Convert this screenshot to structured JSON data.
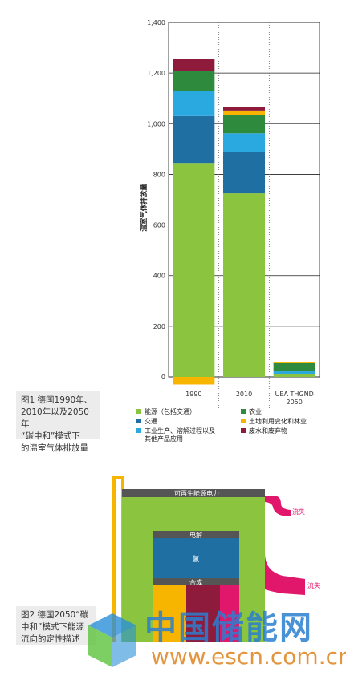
{
  "chart_data": {
    "type": "bar",
    "stacked": true,
    "categories": [
      "1990",
      "2010",
      "UEA THGND 2050"
    ],
    "category_lines": [
      [
        "1990"
      ],
      [
        "2010"
      ],
      [
        "UEA THGND",
        "2050"
      ]
    ],
    "ylabel": "温室气体排放量",
    "ylim": [
      -40,
      1400
    ],
    "yticks": [
      "0",
      "200",
      "400",
      "600",
      "800",
      "1,000",
      "1,200",
      "1,400"
    ],
    "ytick_values": [
      0,
      200,
      400,
      600,
      800,
      1000,
      1200,
      1400
    ],
    "grid": true,
    "series": [
      {
        "name": "能源（包括交通）",
        "color": "#8bc53f",
        "values": [
          845,
          725,
          12
        ]
      },
      {
        "name": "交通",
        "color": "#1f6fa3",
        "values": [
          185,
          162,
          0
        ]
      },
      {
        "name": "工业生产、溶解过程以及其他产品应用",
        "color": "#2aa8e0",
        "values": [
          98,
          75,
          10
        ]
      },
      {
        "name": "农业",
        "color": "#2e8b3e",
        "values": [
          82,
          72,
          32
        ]
      },
      {
        "name": "土地利用变化和林业",
        "color": "#f7b500",
        "values": [
          -30,
          18,
          4
        ]
      },
      {
        "name": "废水和废弃物",
        "color": "#8e1a3c",
        "values": [
          45,
          15,
          2
        ]
      }
    ],
    "legend": {
      "placement": "bottom",
      "rows": [
        [
          {
            "lines": [
              "能源（包括交通）"
            ],
            "color": "#8bc53f"
          },
          {
            "lines": [
              "农业"
            ],
            "color": "#2e8b3e"
          }
        ],
        [
          {
            "lines": [
              "交通"
            ],
            "color": "#1f6fa3"
          },
          {
            "lines": [
              "土地利用变化和林业"
            ],
            "color": "#f7b500"
          }
        ],
        [
          {
            "lines": [
              "工业生产、溶解过程以及",
              "其他产品应用"
            ],
            "color": "#2aa8e0"
          },
          {
            "lines": [
              "废水和废弃物"
            ],
            "color": "#8e1a3c"
          }
        ]
      ]
    }
  },
  "caption1": {
    "lines": [
      "图1 德国1990年、",
      "2010年以及2050年",
      "“碳中和”模式下",
      "的温室气体排放量"
    ]
  },
  "diagram2": {
    "labels": {
      "renewable": "可再生能源电力",
      "electrolysis": "电解",
      "hydrogen": "氢",
      "synthesis": "合成",
      "loss_top": "流失",
      "loss_mid": "流失"
    },
    "colors": {
      "green": "#8bc53f",
      "gray": "#555555",
      "blue": "#1f6fa3",
      "yellow": "#f7b500",
      "crimson": "#8e1a3c",
      "pink": "#e0176b"
    }
  },
  "caption2": {
    "lines": [
      "图2 德国2050“碳",
      "中和”模式下能源",
      "流向的定性描述"
    ]
  },
  "watermark": {
    "cn": "中国储能网",
    "url": "www.escn.com.cn",
    "colors": {
      "cube_blue": "#2a8fd8",
      "cube_green": "#5cc23c"
    }
  }
}
